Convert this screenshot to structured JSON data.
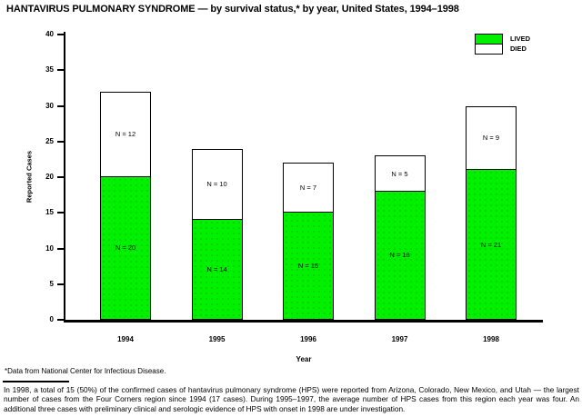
{
  "chart_data": {
    "type": "bar",
    "stacked": true,
    "title": "HANTAVIRUS PULMONARY SYNDROME — by survival status,* by year, United States, 1994–1998",
    "categories": [
      "1994",
      "1995",
      "1996",
      "1997",
      "1998"
    ],
    "series": [
      {
        "name": "LIVED",
        "color": "#00f000",
        "values": [
          20,
          14,
          15,
          18,
          21
        ],
        "labels": [
          "N = 20",
          "N = 14",
          "N = 15",
          "N = 18",
          "N = 21"
        ]
      },
      {
        "name": "DIED",
        "color": "#ffffff",
        "values": [
          12,
          10,
          7,
          5,
          9
        ],
        "labels": [
          "N = 12",
          "N = 10",
          "N = 7",
          "N = 5",
          "N = 9"
        ]
      }
    ],
    "totals": [
      32,
      24,
      22,
      23,
      30
    ],
    "xlabel": "Year",
    "ylabel": "Reported Cases",
    "ylim": [
      0,
      40
    ],
    "yticks": [
      0,
      5,
      10,
      15,
      20,
      25,
      30,
      35,
      40
    ],
    "grid": false,
    "legend_position": "top-right"
  },
  "footnote": "*Data from National Center for Infectious Disease.",
  "caption": "In 1998, a total of 15 (50%) of the confirmed cases of hantavirus pulmonary syndrome (HPS) were reported from Arizona, Colorado, New Mexico, and Utah — the largest number of cases from the Four Corners region since 1994 (17 cases). During 1995–1997, the average number of HPS cases from this region each year was four. An additional three cases with preliminary clinical and serologic evidence of HPS with onset in 1998 are under investigation."
}
